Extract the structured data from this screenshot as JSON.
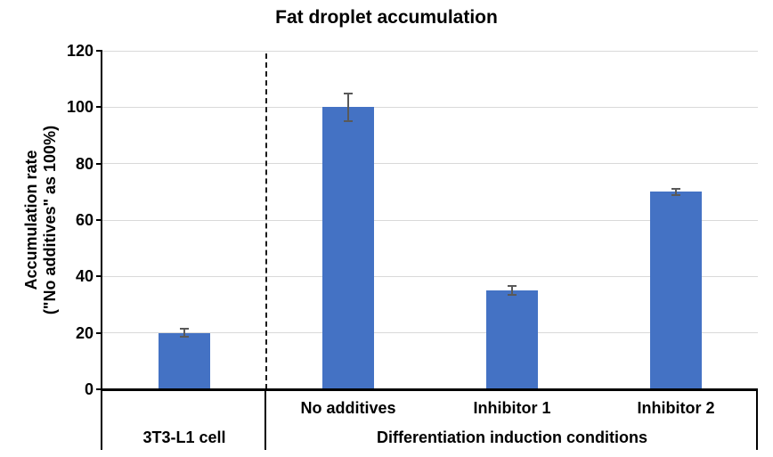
{
  "chart_data": {
    "type": "bar",
    "title": "Fat droplet accumulation",
    "ylabel_lines": [
      "Accumulation rate",
      "(\"No additives\" as 100%)"
    ],
    "xlabel": "",
    "ylim": [
      0,
      120
    ],
    "yticks": [
      0,
      20,
      40,
      60,
      80,
      100,
      120
    ],
    "grid": "horizontal",
    "legend": "none",
    "bars": [
      {
        "sub_label": "",
        "value": 20,
        "error": 1.5
      },
      {
        "sub_label": "No additives",
        "value": 100,
        "error": 5
      },
      {
        "sub_label": "Inhibitor 1",
        "value": 35,
        "error": 1.5
      },
      {
        "sub_label": "Inhibitor 2",
        "value": 70,
        "error": 1
      }
    ],
    "groups": [
      {
        "label": "3T3-L1 cell",
        "from": 0,
        "to": 0
      },
      {
        "label": "Differentiation induction conditions",
        "from": 1,
        "to": 3
      }
    ],
    "separator_after_slot": 0,
    "colors": {
      "bar": "#4472C4",
      "error": "#595959",
      "gridline": "#D9D9D9",
      "axis": "#000000",
      "text": "#000000",
      "background": "#FFFFFF"
    }
  }
}
